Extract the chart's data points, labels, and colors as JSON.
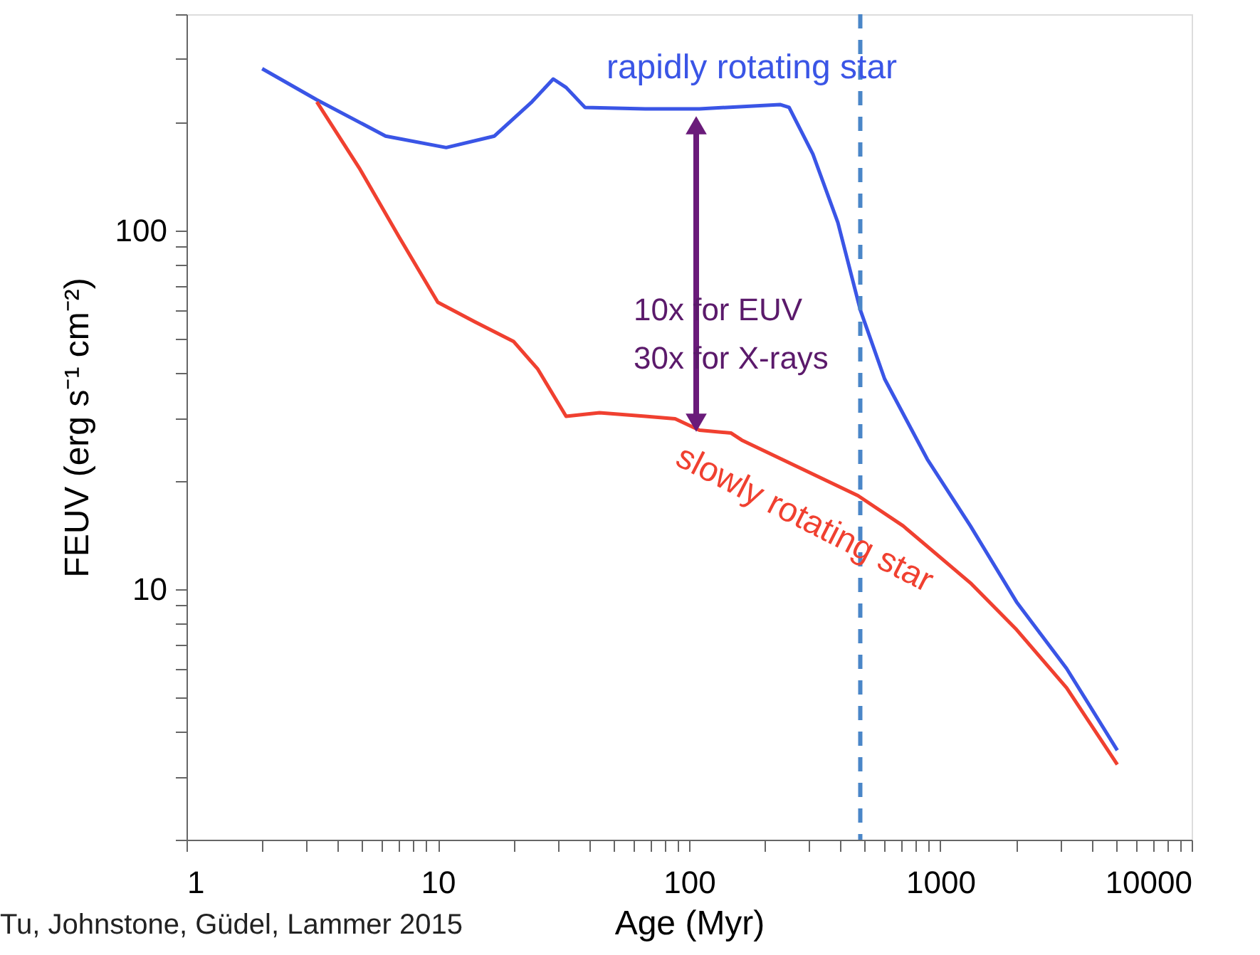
{
  "chart_data": {
    "type": "line",
    "xlabel": "Age (Myr)",
    "ylabel": "FEUV (erg s⁻¹ cm⁻²)",
    "log": "xy",
    "grid": false,
    "legend": false,
    "line_style": "solid",
    "marker": "none",
    "xlim": [
      1,
      10000
    ],
    "xticks": [
      1,
      {
        "value": 2,
        "label": null
      },
      {
        "value": 3,
        "label": null
      },
      {
        "value": 4,
        "label": null
      },
      {
        "value": 5,
        "label": null
      },
      {
        "value": 6,
        "label": null
      },
      {
        "value": 7,
        "label": null
      },
      {
        "value": 8,
        "label": null
      },
      {
        "value": 9,
        "label": null
      },
      10,
      {
        "value": 20,
        "label": null
      },
      {
        "value": 30,
        "label": null
      },
      {
        "value": 40,
        "label": null
      },
      {
        "value": 50,
        "label": null
      },
      {
        "value": 60,
        "label": null
      },
      {
        "value": 70,
        "label": null
      },
      {
        "value": 80,
        "label": null
      },
      {
        "value": 90,
        "label": null
      },
      100,
      {
        "value": 200,
        "label": null
      },
      {
        "value": 300,
        "label": null
      },
      {
        "value": 400,
        "label": null
      },
      {
        "value": 500,
        "label": null
      },
      {
        "value": 600,
        "label": null
      },
      {
        "value": 700,
        "label": null
      },
      {
        "value": 800,
        "label": null
      },
      {
        "value": 900,
        "label": null
      },
      1000,
      {
        "value": 2000,
        "label": null
      },
      {
        "value": 3000,
        "label": null
      },
      {
        "value": 4000,
        "label": null
      },
      {
        "value": 5000,
        "label": null
      },
      {
        "value": 6000,
        "label": null
      },
      {
        "value": 7000,
        "label": null
      },
      {
        "value": 8000,
        "label": null
      },
      {
        "value": 9000,
        "label": null
      },
      10000
    ],
    "ylim": [
      2,
      400
    ],
    "yticks": [
      {
        "value": 2,
        "label": null
      },
      {
        "value": 3,
        "label": null
      },
      {
        "value": 4,
        "label": null
      },
      {
        "value": 5,
        "label": null
      },
      {
        "value": 6,
        "label": null
      },
      {
        "value": 7,
        "label": null
      },
      {
        "value": 8,
        "label": null
      },
      {
        "value": 9,
        "label": null
      },
      10,
      {
        "value": 20,
        "label": null
      },
      {
        "value": 30,
        "label": null
      },
      {
        "value": 40,
        "label": null
      },
      {
        "value": 50,
        "label": null
      },
      {
        "value": 60,
        "label": null
      },
      {
        "value": 70,
        "label": null
      },
      {
        "value": 80,
        "label": null
      },
      {
        "value": 90,
        "label": null
      },
      100,
      {
        "value": 200,
        "label": null
      },
      {
        "value": 300,
        "label": null
      },
      {
        "value": 400,
        "label": null
      }
    ],
    "series": [
      {
        "name": "rapidly rotating star",
        "color": "#3a55e6",
        "x": [
          2,
          3.3,
          6.2,
          10.8,
          16.8,
          23.7,
          28.8,
          32.4,
          38.5,
          67,
          110,
          230,
          250,
          311,
          391,
          480,
          600,
          887,
          1316,
          2010,
          3180,
          5060
        ],
        "values": [
          282,
          231,
          183,
          170,
          183,
          228,
          264,
          250,
          220,
          218,
          218,
          224,
          220,
          163,
          105,
          60,
          38.5,
          23,
          15,
          9.2,
          6,
          3.55
        ]
      },
      {
        "name": "slowly rotating star",
        "color": "#f04030",
        "x": [
          3.3,
          4.9,
          7,
          10,
          14,
          20,
          25,
          32.4,
          44,
          67,
          88,
          110,
          147,
          162,
          470,
          710,
          1316,
          2010,
          3180,
          5060
        ],
        "values": [
          228,
          148,
          96,
          63,
          55.6,
          49,
          41,
          30.3,
          31,
          30.3,
          29.8,
          27.7,
          27.2,
          26,
          18.2,
          15,
          10.4,
          7.7,
          5.3,
          3.24
        ]
      }
    ],
    "ref_lines": [
      {
        "axis": "x",
        "value": 480,
        "color": "#4a86c8",
        "line_style": "dashed"
      }
    ],
    "annotations": [
      "10x  for EUV\n30x  for X-rays",
      "Tu, Johnstone, Güdel, Lammer 2015"
    ]
  }
}
